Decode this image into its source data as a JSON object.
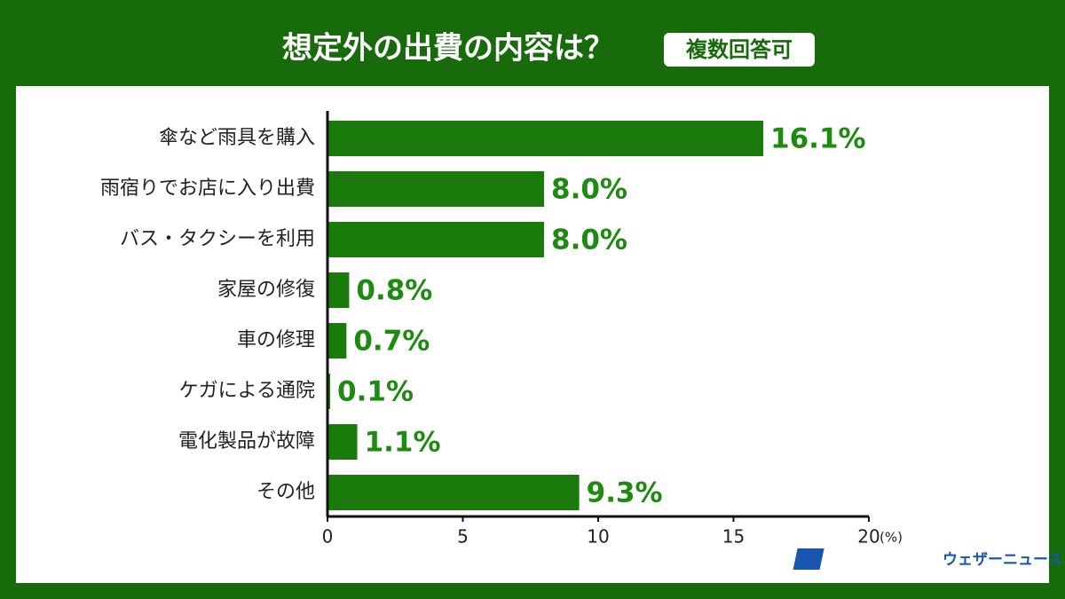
{
  "chart_data": {
    "type": "bar",
    "orientation": "horizontal",
    "title": "想定外の出費の内容は？",
    "badge": "複数回答可",
    "categories": [
      "傘など雨具を購入",
      "雨宿りでお店に入り出費",
      "バス・タクシーを利用",
      "家屋の修復",
      "車の修理",
      "ケガによる通院",
      "電化製品が故障",
      "その他"
    ],
    "values": [
      16.1,
      8.0,
      8.0,
      0.8,
      0.7,
      0.1,
      1.1,
      9.3
    ],
    "value_labels": [
      "16.1%",
      "8.0%",
      "8.0%",
      "0.8%",
      "0.7%",
      "0.1%",
      "1.1%",
      "9.3%"
    ],
    "color": "#1b7a0c",
    "xlim": [
      0,
      20
    ],
    "xticks": [
      0,
      5,
      10,
      15,
      20
    ],
    "x_unit": "(%)",
    "logo_mark": "WN",
    "logo_text": "ウェザーニュース"
  }
}
